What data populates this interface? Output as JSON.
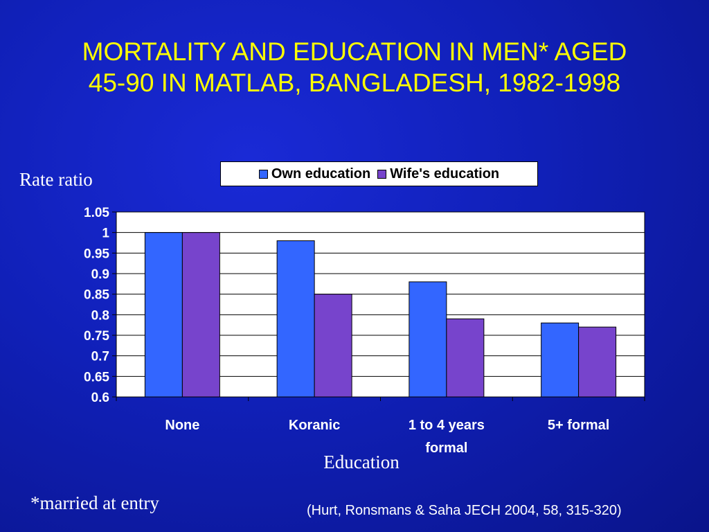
{
  "slide": {
    "title_line1": "MORTALITY AND EDUCATION IN MEN* AGED",
    "title_line2": "45-90 IN MATLAB, BANGLADESH, 1982-1998",
    "footnote": "*married at entry",
    "citation": "(Hurt, Ronsmans & Saha JECH 2004, 58, 315-320)"
  },
  "colors": {
    "title": "#ffff00",
    "plot_background": "#ffffff",
    "own_education": "#3366ff",
    "wife_education": "#7744cc"
  },
  "chart_data": {
    "type": "bar",
    "ylabel": "Rate ratio",
    "xlabel": "Education",
    "categories": [
      "None",
      "Koranic",
      "1 to 4 years formal",
      "5+ formal"
    ],
    "category_lines": [
      [
        "None"
      ],
      [
        "Koranic"
      ],
      [
        "1 to 4 years",
        "formal"
      ],
      [
        "5+ formal"
      ]
    ],
    "series": [
      {
        "name": "Own education",
        "values": [
          1.0,
          0.98,
          0.88,
          0.78
        ],
        "color": "#3366ff"
      },
      {
        "name": "Wife's education",
        "values": [
          1.0,
          0.85,
          0.79,
          0.77
        ],
        "color": "#7744cc"
      }
    ],
    "ylim": [
      0.6,
      1.05
    ],
    "yticks": [
      "1.05",
      "1",
      "0.95",
      "0.9",
      "0.85",
      "0.8",
      "0.75",
      "0.7",
      "0.65",
      "0.6"
    ],
    "grid": true,
    "legend_position": "top"
  }
}
